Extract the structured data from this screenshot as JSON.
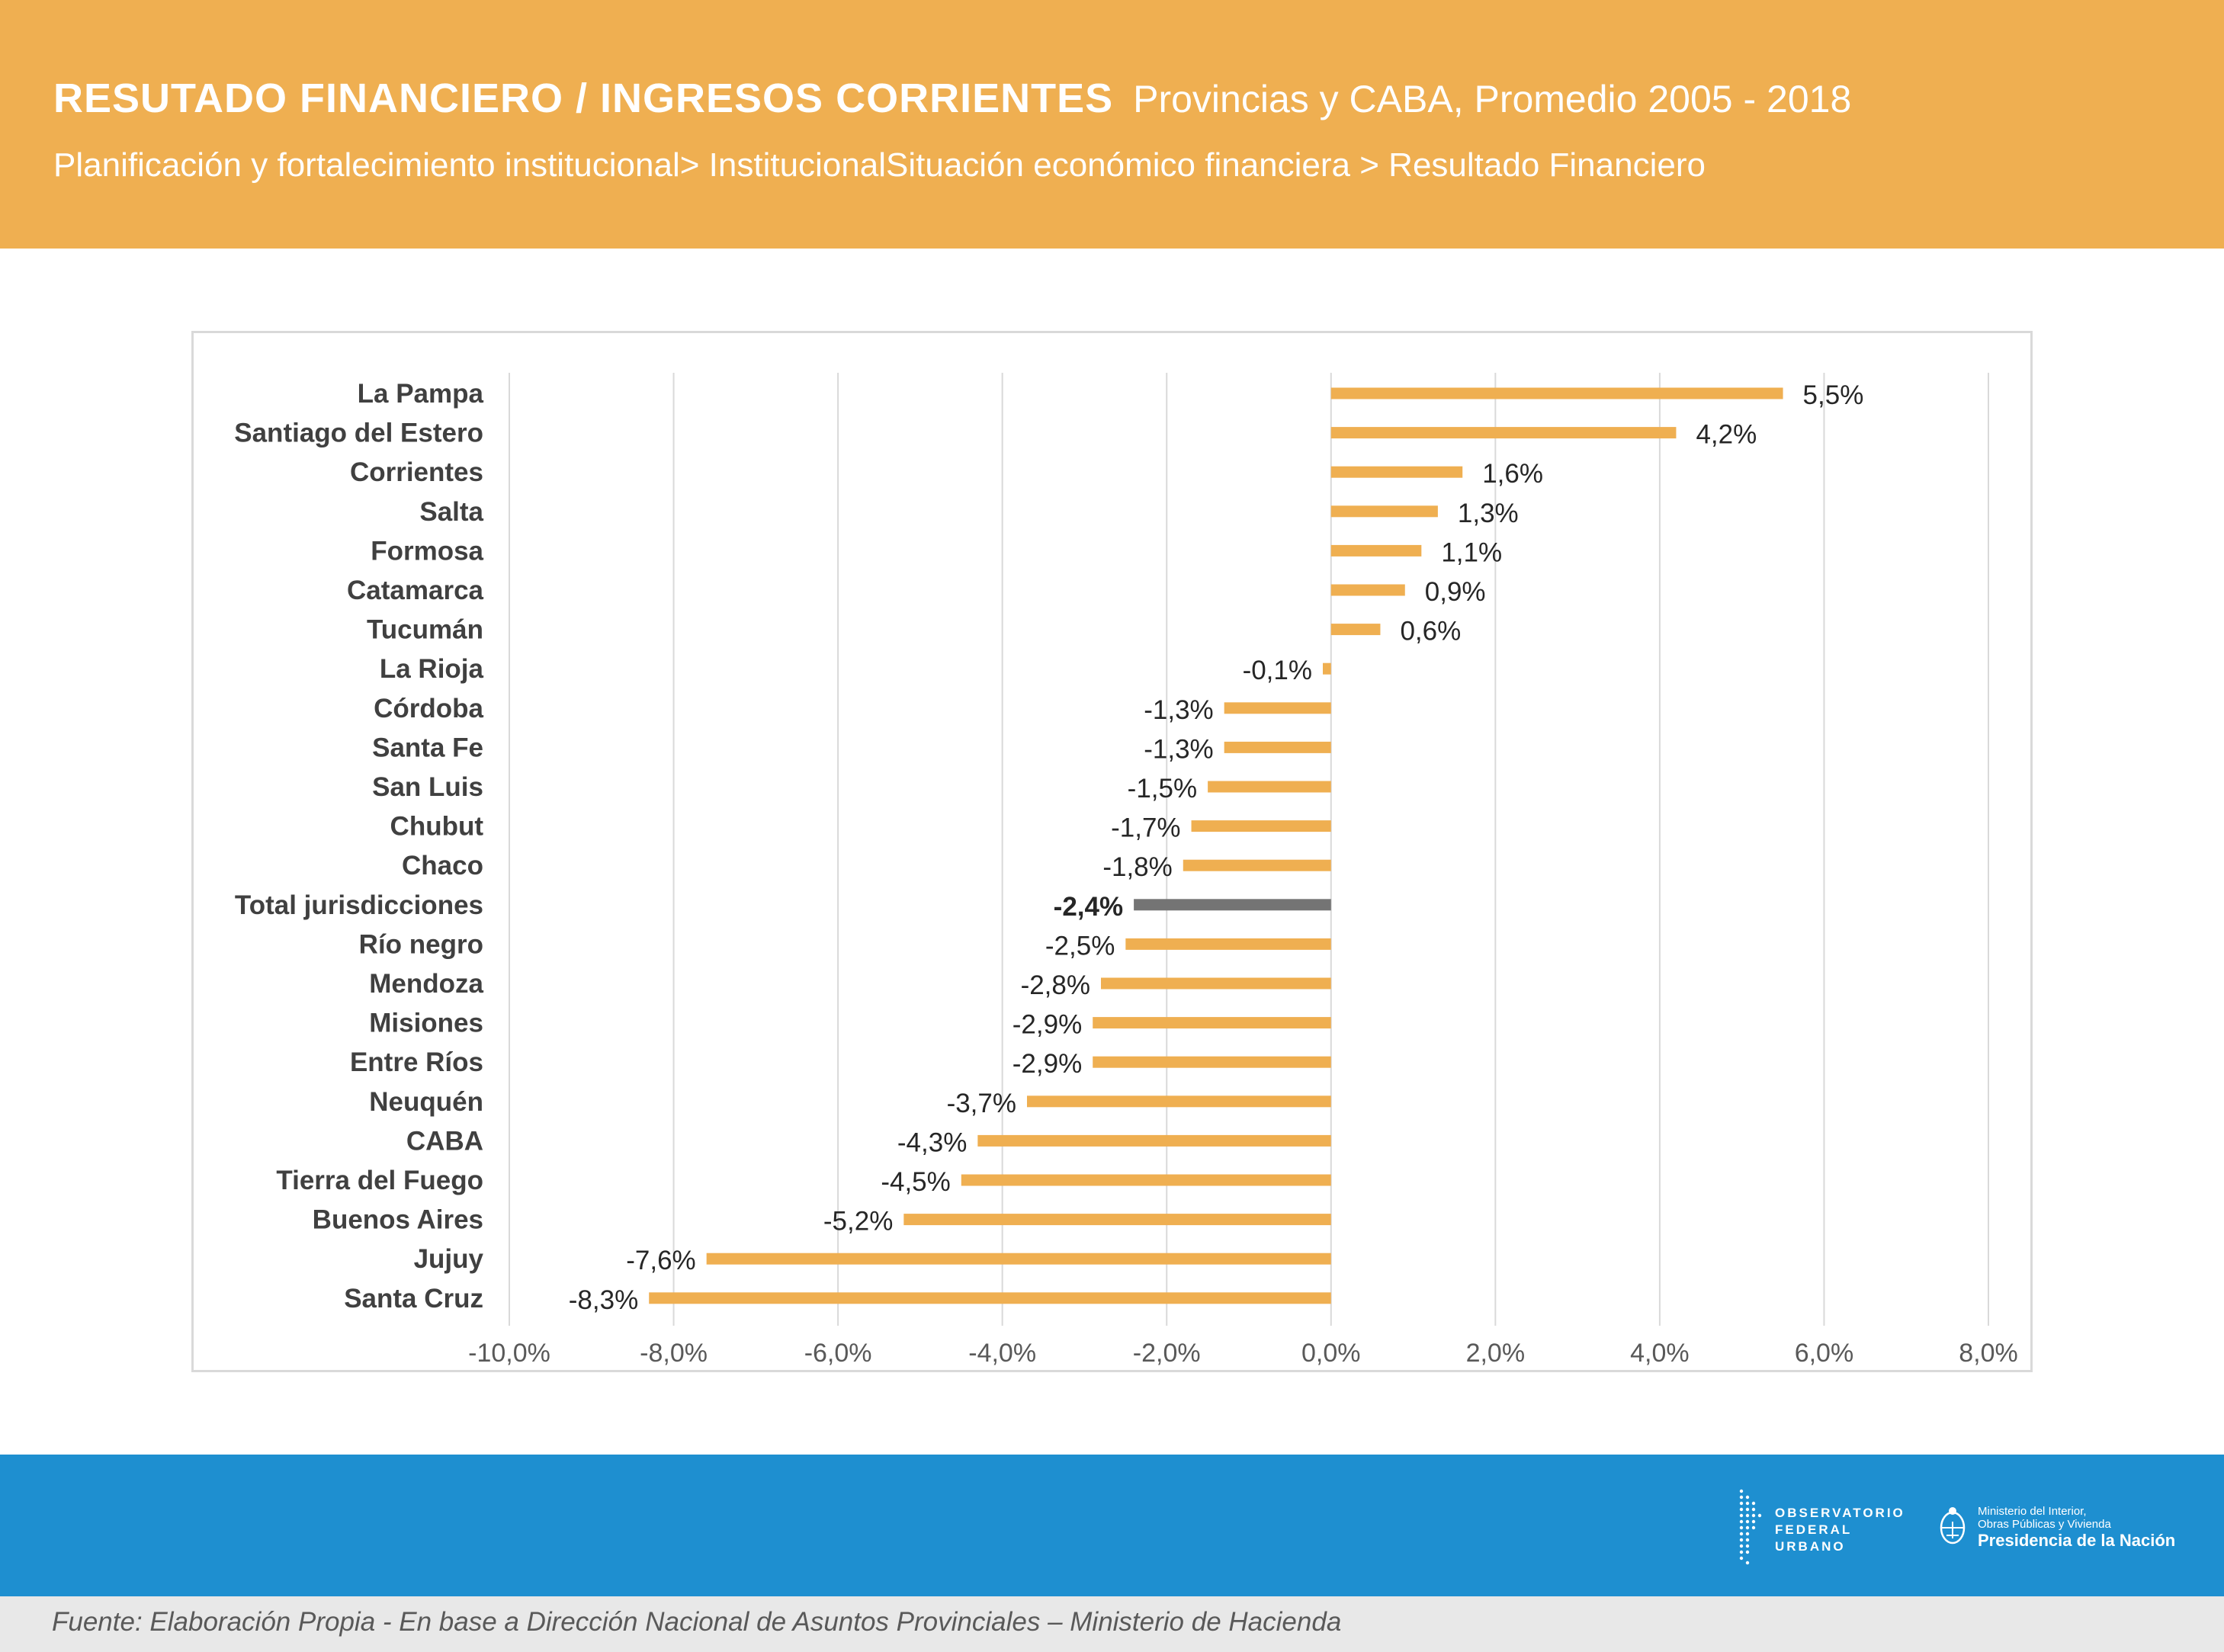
{
  "colors": {
    "header": "#EFAF51",
    "bar": "#EFAF51",
    "highlight_bar": "#747474",
    "footer": "#1E8FD0",
    "grid": "#d9d9d9"
  },
  "header": {
    "title": "RESUTADO FINANCIERO / INGRESOS CORRIENTES",
    "subtitle": "Provincias y CABA,  Promedio 2005 - 2018",
    "breadcrumb": "Planificación y fortalecimiento institucional> InstitucionalSituación económico financiera > Resultado Financiero"
  },
  "chart_data": {
    "type": "bar",
    "orientation": "horizontal",
    "categories": [
      "La Pampa",
      "Santiago del Estero",
      "Corrientes",
      "Salta",
      "Formosa",
      "Catamarca",
      "Tucumán",
      "La Rioja",
      "Córdoba",
      "Santa Fe",
      "San Luis",
      "Chubut",
      "Chaco",
      "Total jurisdicciones",
      "Río negro",
      "Mendoza",
      "Misiones",
      "Entre Ríos",
      "Neuquén",
      "CABA",
      "Tierra del Fuego",
      "Buenos Aires",
      "Jujuy",
      "Santa Cruz"
    ],
    "values": [
      5.5,
      4.2,
      1.6,
      1.3,
      1.1,
      0.9,
      0.6,
      -0.1,
      -1.3,
      -1.3,
      -1.5,
      -1.7,
      -1.8,
      -2.4,
      -2.5,
      -2.8,
      -2.9,
      -2.9,
      -3.7,
      -4.3,
      -4.5,
      -5.2,
      -7.6,
      -8.3
    ],
    "value_labels": [
      "5,5%",
      "4,2%",
      "1,6%",
      "1,3%",
      "1,1%",
      "0,9%",
      "0,6%",
      "-0,1%",
      "-1,3%",
      "-1,3%",
      "-1,5%",
      "-1,7%",
      "-1,8%",
      "-2,4%",
      "-2,5%",
      "-2,8%",
      "-2,9%",
      "-2,9%",
      "-3,7%",
      "-4,3%",
      "-4,5%",
      "-5,2%",
      "-7,6%",
      "-8,3%"
    ],
    "highlight": "Total jurisdicciones",
    "xlim": [
      -10,
      8
    ],
    "xticks": [
      -10,
      -8,
      -6,
      -4,
      -2,
      0,
      2,
      4,
      6,
      8
    ],
    "xtick_labels": [
      "-10,0%",
      "-8,0%",
      "-6,0%",
      "-4,0%",
      "-2,0%",
      "0,0%",
      "2,0%",
      "4,0%",
      "6,0%",
      "8,0%"
    ],
    "grid": true,
    "legend": "none",
    "title": "",
    "xlabel": "",
    "ylabel": ""
  },
  "footer": {
    "source": "Fuente: Elaboración Propia - En base  a Dirección Nacional de Asuntos Provinciales – Ministerio de Hacienda",
    "logo_observatorio": [
      "OBSERVATORIO",
      "FEDERAL",
      "URBANO"
    ],
    "logo_ministerio": [
      "Ministerio del Interior,",
      "Obras Públicas y Vivienda"
    ],
    "logo_presidencia": "Presidencia de la Nación"
  }
}
